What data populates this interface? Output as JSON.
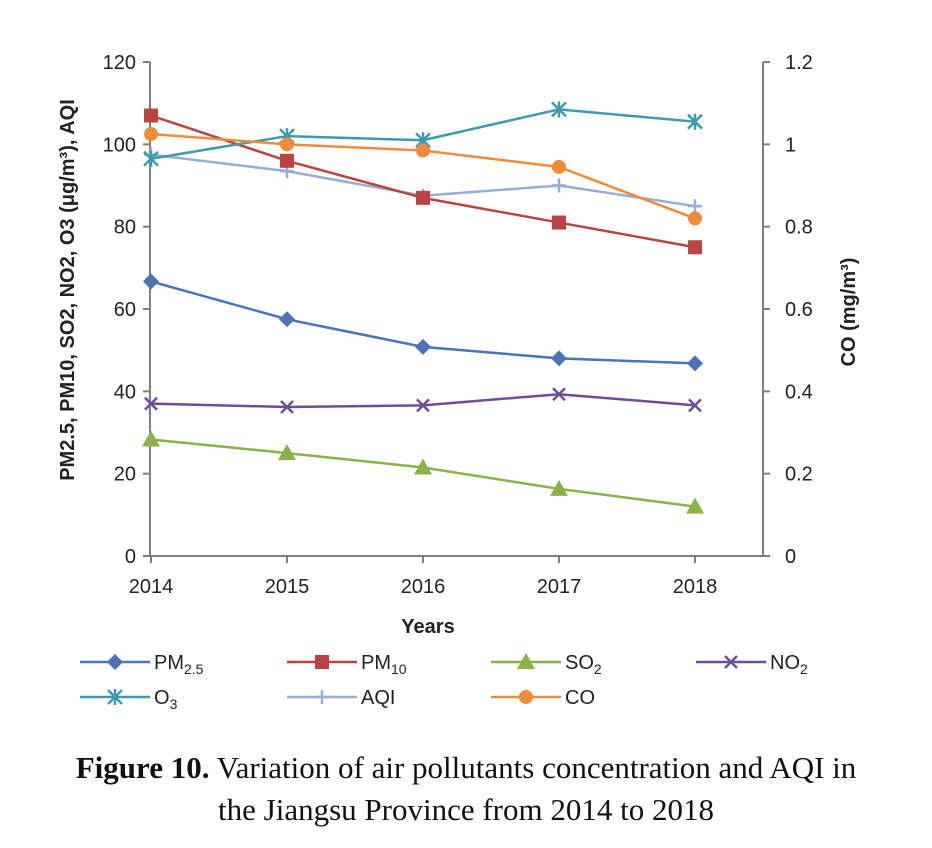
{
  "chart_data": {
    "type": "line",
    "x": [
      "2014",
      "2015",
      "2016",
      "2017",
      "2018"
    ],
    "xlabel": "Years",
    "ylabel_left": "PM2.5, PM10, SO2, NO2, O3 (μg/m³), AQI",
    "ylabel_right": "CO (mg/m³)",
    "ylim_left": [
      0,
      120
    ],
    "ylim_right": [
      0,
      1.2
    ],
    "yticks_left": [
      "0",
      "20",
      "40",
      "60",
      "80",
      "100",
      "120"
    ],
    "yticks_right": [
      "0",
      "0.2",
      "0.4",
      "0.6",
      "0.8",
      "1",
      "1.2"
    ],
    "grid": false,
    "legend_position": "bottom",
    "series": [
      {
        "name": "PM2.5",
        "label_main": "PM",
        "label_sub": "2.5",
        "axis": "left",
        "color": "#4a74b5",
        "marker": "diamond",
        "values": [
          66.7,
          57.5,
          50.8,
          48.0,
          46.8
        ]
      },
      {
        "name": "PM10",
        "label_main": "PM",
        "label_sub": "10",
        "axis": "left",
        "color": "#b94441",
        "marker": "square",
        "values": [
          107,
          96,
          87,
          81,
          75
        ]
      },
      {
        "name": "SO2",
        "label_main": "SO",
        "label_sub": "2",
        "axis": "left",
        "color": "#8cb04a",
        "marker": "triangle",
        "values": [
          28.3,
          25.0,
          21.5,
          16.3,
          12.0
        ]
      },
      {
        "name": "NO2",
        "label_main": "NO",
        "label_sub": "2",
        "axis": "left",
        "color": "#6f4e99",
        "marker": "x",
        "values": [
          37,
          36.2,
          36.6,
          39.3,
          36.6
        ]
      },
      {
        "name": "O3",
        "label_main": "O",
        "label_sub": "3",
        "axis": "left",
        "color": "#3d9aaf",
        "marker": "star",
        "values": [
          96.5,
          102,
          101,
          108.5,
          105.5
        ]
      },
      {
        "name": "AQI",
        "label_main": "AQI",
        "label_sub": "",
        "axis": "left",
        "color": "#94aed6",
        "marker": "plus",
        "values": [
          97.5,
          93.5,
          87.5,
          90,
          85
        ]
      },
      {
        "name": "CO",
        "label_main": "CO",
        "label_sub": "",
        "axis": "right",
        "color": "#ee8c3b",
        "marker": "circle",
        "values": [
          1.025,
          1.0,
          0.985,
          0.945,
          0.82
        ]
      }
    ]
  },
  "caption": {
    "bold": "Figure 10.",
    "line1": " Variation of air pollutants concentration and AQI in",
    "line2": "the Jiangsu Province from 2014 to 2018"
  }
}
